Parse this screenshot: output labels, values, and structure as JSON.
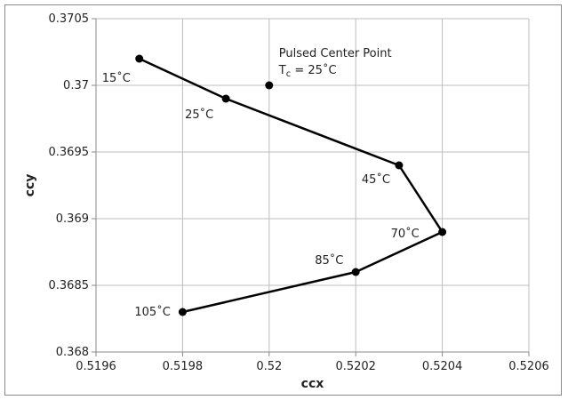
{
  "chart_data": {
    "type": "scatter",
    "xlabel": "ccx",
    "ylabel": "ccy",
    "xlim": [
      0.5196,
      0.5206
    ],
    "ylim": [
      0.368,
      0.3705
    ],
    "x_ticks": [
      "0.5196",
      "0.5198",
      "0.52",
      "0.5202",
      "0.5204",
      "0.5206"
    ],
    "y_ticks": [
      "0.368",
      "0.3685",
      "0.369",
      "0.3695",
      "0.37",
      "0.3705"
    ],
    "grid": true,
    "series": [
      {
        "points": [
          {
            "x": 0.5197,
            "y": 0.3702,
            "label": "15˚C"
          },
          {
            "x": 0.5199,
            "y": 0.3699,
            "label": "25˚C"
          },
          {
            "x": 0.5203,
            "y": 0.3694,
            "label": "45˚C"
          },
          {
            "x": 0.5204,
            "y": 0.3689,
            "label": "70˚C"
          },
          {
            "x": 0.5202,
            "y": 0.3686,
            "label": "85˚C"
          },
          {
            "x": 0.5198,
            "y": 0.3683,
            "label": "105˚C"
          }
        ],
        "color": "#000000"
      }
    ],
    "center_point": {
      "x": 0.52,
      "y": 0.37,
      "title": "Pulsed Center Point",
      "formula_prefix": "T",
      "formula_sub": "c",
      "formula_suffix": " = 25˚C"
    },
    "colors": {
      "grid": "#bdbdbd",
      "axis": "#888888",
      "series": "#000000"
    }
  }
}
